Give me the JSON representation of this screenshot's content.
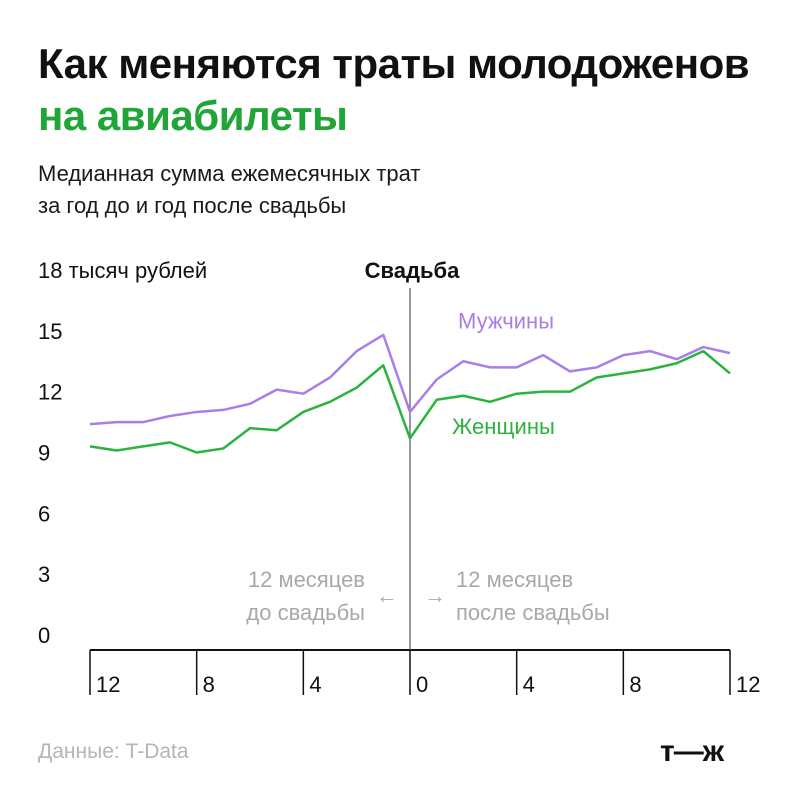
{
  "header": {
    "title_part1": "Как меняются траты молодоженов ",
    "title_accent": "на авиабилеты",
    "subtitle_line1": "Медианная сумма ежемесячных трат",
    "subtitle_line2": "за год до и год после свадьбы"
  },
  "footer": {
    "source": "Данные: T-Data",
    "logo": "т—ж"
  },
  "colors": {
    "men": "#a87ee8",
    "women": "#2bb33f",
    "accent": "#1fa637",
    "annotation": "#a8a8a8"
  },
  "chart_data": {
    "type": "line",
    "y_unit_label": "18 тысяч рублей",
    "event_label": "Свадьба",
    "ylim": [
      0,
      18
    ],
    "yticks": [
      {
        "value": 0,
        "label": "0"
      },
      {
        "value": 3,
        "label": "3"
      },
      {
        "value": 6,
        "label": "6"
      },
      {
        "value": 9,
        "label": "9"
      },
      {
        "value": 12,
        "label": "12"
      },
      {
        "value": 15,
        "label": "15"
      }
    ],
    "xlim": [
      -12,
      12
    ],
    "xticks": [
      {
        "value": -12,
        "label": "12"
      },
      {
        "value": -8,
        "label": "8"
      },
      {
        "value": -4,
        "label": "4"
      },
      {
        "value": 0,
        "label": "0"
      },
      {
        "value": 4,
        "label": "4"
      },
      {
        "value": 8,
        "label": "8"
      },
      {
        "value": 12,
        "label": "12"
      }
    ],
    "x": [
      -12,
      -11,
      -10,
      -9,
      -8,
      -7,
      -6,
      -5,
      -4,
      -3,
      -2,
      -1,
      0,
      1,
      2,
      3,
      4,
      5,
      6,
      7,
      8,
      9,
      10,
      11,
      12
    ],
    "series": [
      {
        "name": "Мужчины",
        "values": [
          10.4,
          10.5,
          10.5,
          10.8,
          11.0,
          11.1,
          11.4,
          12.1,
          11.9,
          12.7,
          14.0,
          14.8,
          11.0,
          12.6,
          13.5,
          13.2,
          13.2,
          13.8,
          13.0,
          13.2,
          13.8,
          14.0,
          13.6,
          14.2,
          13.9
        ]
      },
      {
        "name": "Женщины",
        "values": [
          9.3,
          9.1,
          9.3,
          9.5,
          9.0,
          9.2,
          10.2,
          10.1,
          11.0,
          11.5,
          12.2,
          13.3,
          9.7,
          11.6,
          11.8,
          11.5,
          11.9,
          12.0,
          12.0,
          12.7,
          12.9,
          13.1,
          13.4,
          14.0,
          12.9
        ]
      }
    ],
    "annotations": {
      "before_line1": "12 месяцев",
      "before_line2": "до свадьбы",
      "before_arrow": "←",
      "after_arrow": "→",
      "after_line1": "12 месяцев",
      "after_line2": "после свадьбы"
    },
    "grid": false,
    "legend": "inline"
  }
}
